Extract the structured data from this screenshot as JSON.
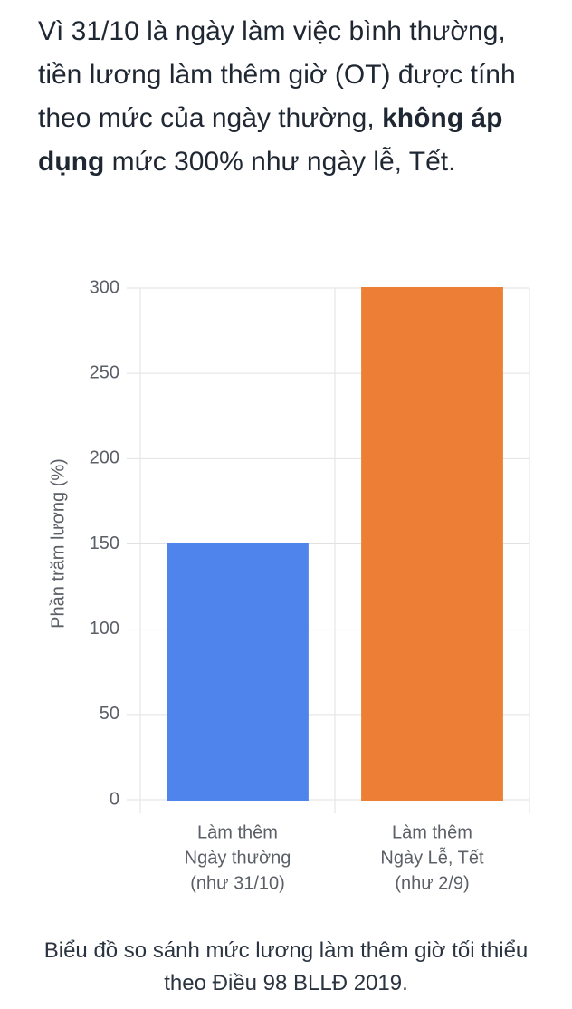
{
  "intro": {
    "before": "Vì 31/10 là ngày làm việc bình thường, tiền lương làm thêm giờ (OT) được tính theo mức của ngày thường,",
    "bold": "không áp dụng",
    "after": "mức 300% như ngày lễ, Tết."
  },
  "chart_data": {
    "type": "bar",
    "y_label": "Phần trăm lương (%)",
    "categories": [
      [
        "Làm thêm",
        "Ngày thường",
        "(như 31/10)"
      ],
      [
        "Làm thêm",
        "Ngày Lễ, Tết",
        "(như 2/9)"
      ]
    ],
    "values": [
      150,
      300
    ],
    "colors": [
      "#4f84ec",
      "#ec7e36"
    ],
    "ylim": [
      0,
      300
    ],
    "yticks": [
      0,
      50,
      100,
      150,
      200,
      250,
      300
    ],
    "grid": true
  },
  "caption": "Biểu đồ so sánh mức lương làm thêm giờ tối thiểu theo Điều 98 BLLĐ 2019."
}
